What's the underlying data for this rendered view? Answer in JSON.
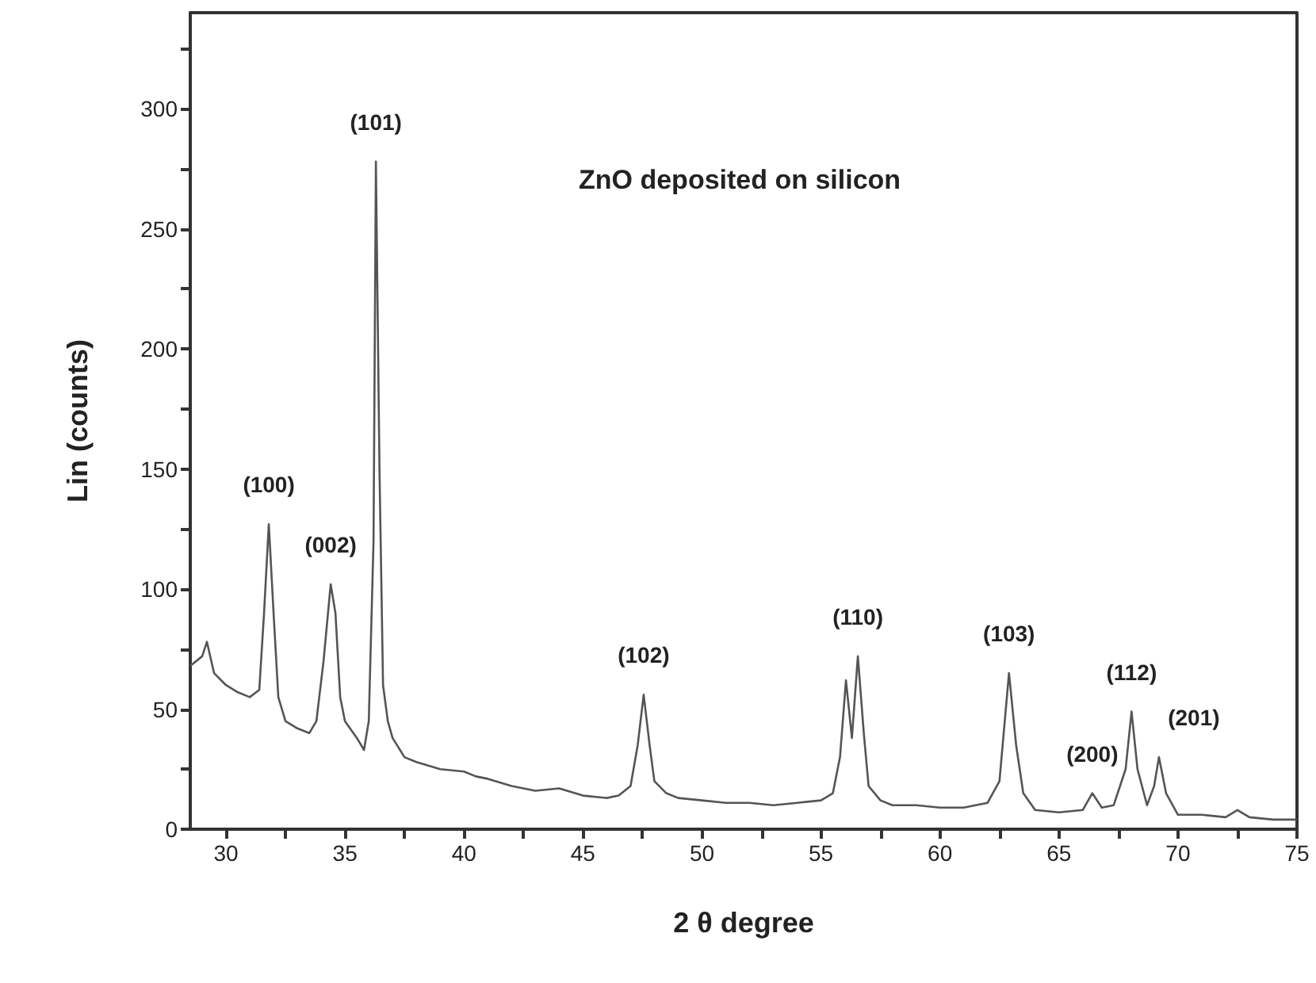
{
  "chart_data": {
    "type": "line",
    "title": "ZnO deposited on silicon",
    "xlabel": "2 θ degree",
    "ylabel": "Lin (counts)",
    "xlim": [
      28.5,
      75
    ],
    "xticks": [
      30,
      {
        "value": 32.5,
        "label": null
      },
      35,
      {
        "value": 37.5,
        "label": null
      },
      40,
      {
        "value": 42.5,
        "label": null
      },
      45,
      {
        "value": 47.5,
        "label": null
      },
      50,
      {
        "value": 52.5,
        "label": null
      },
      55,
      {
        "value": 57.5,
        "label": null
      },
      60,
      {
        "value": 62.5,
        "label": null
      },
      65,
      {
        "value": 67.5,
        "label": null
      },
      70,
      {
        "value": 72.5,
        "label": null
      },
      75
    ],
    "ylim": [
      0,
      340
    ],
    "yticks": [
      0,
      {
        "value": 25,
        "label": null
      },
      50,
      {
        "value": 75,
        "label": null
      },
      100,
      {
        "value": 125,
        "label": null
      },
      150,
      {
        "value": 175,
        "label": null
      },
      200,
      {
        "value": 225,
        "label": null
      },
      250,
      {
        "value": 275,
        "label": null
      },
      300,
      {
        "value": 325,
        "label": null
      }
    ],
    "grid": false,
    "marker": "none",
    "line_style": "solid",
    "series": [
      {
        "color": "#555555",
        "x": [
          28.5,
          29,
          29.2,
          29.5,
          30,
          30.5,
          31,
          31.4,
          31.6,
          31.8,
          32.0,
          32.2,
          32.5,
          33,
          33.5,
          33.8,
          34.1,
          34.4,
          34.6,
          34.8,
          35,
          35.5,
          35.8,
          36.0,
          36.2,
          36.3,
          36.45,
          36.6,
          36.8,
          37,
          37.5,
          38,
          39,
          40,
          40.5,
          41,
          42,
          43,
          44,
          45,
          46,
          46.5,
          47,
          47.3,
          47.55,
          47.8,
          48,
          48.5,
          49,
          50,
          51,
          52,
          53,
          54,
          55,
          55.5,
          55.8,
          56.05,
          56.3,
          56.55,
          56.8,
          57,
          57.5,
          58,
          59,
          60,
          61,
          62,
          62.5,
          62.9,
          63.2,
          63.5,
          64,
          65,
          66,
          66.4,
          66.8,
          67.3,
          67.8,
          68.05,
          68.3,
          68.7,
          69.0,
          69.2,
          69.5,
          70,
          71,
          72,
          72.5,
          73,
          74,
          75
        ],
        "values": [
          68,
          72,
          78,
          65,
          60,
          57,
          55,
          58,
          90,
          127,
          90,
          55,
          45,
          42,
          40,
          45,
          70,
          102,
          90,
          55,
          45,
          38,
          33,
          45,
          120,
          278,
          150,
          60,
          45,
          38,
          30,
          28,
          25,
          24,
          22,
          21,
          18,
          16,
          17,
          14,
          13,
          14,
          18,
          35,
          56,
          35,
          20,
          15,
          13,
          12,
          11,
          11,
          10,
          11,
          12,
          15,
          30,
          62,
          38,
          72,
          40,
          18,
          12,
          10,
          10,
          9,
          9,
          11,
          20,
          65,
          35,
          15,
          8,
          7,
          8,
          15,
          9,
          10,
          25,
          49,
          25,
          10,
          18,
          30,
          15,
          6,
          6,
          5,
          8,
          5,
          4,
          4
        ]
      }
    ],
    "annotations": [
      {
        "text": "(100)",
        "x": 31.8,
        "y": 127
      },
      {
        "text": "(002)",
        "x": 34.4,
        "y": 102
      },
      {
        "text": "(101)",
        "x": 36.3,
        "y": 278
      },
      {
        "text": "(102)",
        "x": 47.55,
        "y": 56
      },
      {
        "text": "(110)",
        "x": 56.55,
        "y": 72
      },
      {
        "text": "(103)",
        "x": 62.9,
        "y": 65
      },
      {
        "text": "(200)",
        "x": 66.4,
        "y": 15
      },
      {
        "text": "(112)",
        "x": 68.05,
        "y": 49
      },
      {
        "text": "(201)",
        "x": 69.2,
        "y": 30
      }
    ]
  }
}
